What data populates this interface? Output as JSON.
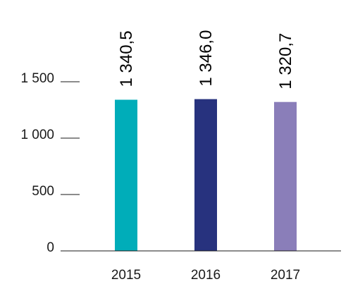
{
  "chart_data": {
    "type": "bar",
    "categories": [
      "2015",
      "2016",
      "2017"
    ],
    "values": [
      1340.5,
      1346.0,
      1320.7
    ],
    "value_labels": [
      "1 340,5",
      "1 346,0",
      "1 320,7"
    ],
    "colors": [
      "#00adb9",
      "#27327e",
      "#8a7eb9"
    ],
    "yticks": [
      0,
      500,
      1000,
      1500
    ],
    "ytick_labels": [
      "0",
      "500",
      "1 000",
      "1 500"
    ],
    "ylim": [
      0,
      1500
    ],
    "grid": false,
    "title": "",
    "xlabel": "",
    "ylabel": ""
  }
}
